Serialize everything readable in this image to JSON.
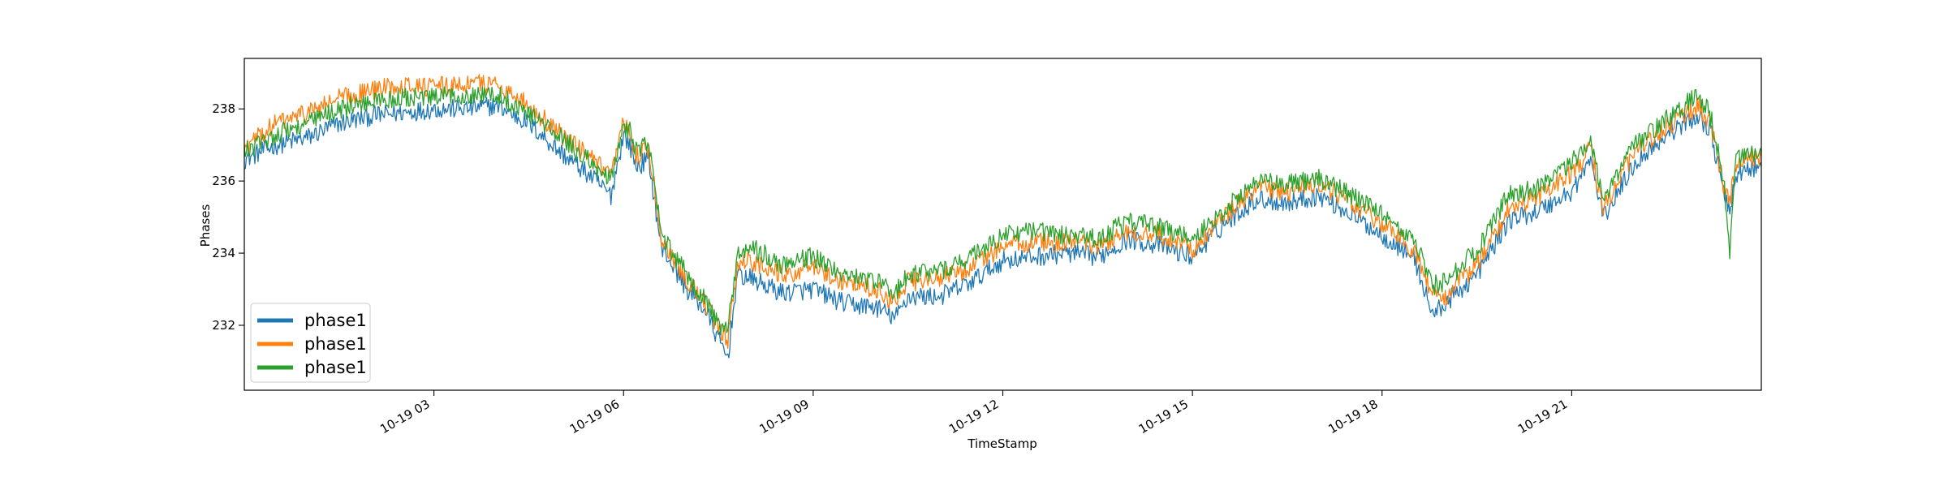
{
  "chart_data": {
    "type": "line",
    "title": "",
    "xlabel": "TimeStamp",
    "ylabel": "Phases",
    "x_range": [
      "10-19 00:00",
      "10-19 24:00"
    ],
    "x_unit": "hours",
    "xlim": [
      0,
      24
    ],
    "ylim": [
      230.2,
      239.4
    ],
    "grid": false,
    "legend_position": "lower-left",
    "x_ticks": [
      {
        "value": 3,
        "label": "10-19 03"
      },
      {
        "value": 6,
        "label": "10-19 06"
      },
      {
        "value": 9,
        "label": "10-19 09"
      },
      {
        "value": 12,
        "label": "10-19 12"
      },
      {
        "value": 15,
        "label": "10-19 15"
      },
      {
        "value": 18,
        "label": "10-19 18"
      },
      {
        "value": 21,
        "label": "10-19 21"
      }
    ],
    "y_ticks": [
      {
        "value": 232,
        "label": "232"
      },
      {
        "value": 234,
        "label": "234"
      },
      {
        "value": 236,
        "label": "236"
      },
      {
        "value": 238,
        "label": "238"
      }
    ],
    "x": [
      0,
      0.5,
      1,
      1.5,
      2,
      2.5,
      3,
      3.5,
      4,
      4.5,
      5,
      5.5,
      5.8,
      6.0,
      6.1,
      6.2,
      6.4,
      6.6,
      6.7,
      7.0,
      7.3,
      7.5,
      7.65,
      7.8,
      8.0,
      8.5,
      9.0,
      9.5,
      10.0,
      10.3,
      10.5,
      11.0,
      11.5,
      12.0,
      12.5,
      13.0,
      13.5,
      14.0,
      14.5,
      15.0,
      15.5,
      16.0,
      16.5,
      17.0,
      17.5,
      18.0,
      18.5,
      18.8,
      19.0,
      19.5,
      20.0,
      20.5,
      21.0,
      21.3,
      21.5,
      22.0,
      22.5,
      23.0,
      23.2,
      23.4,
      23.5,
      23.6,
      24.0
    ],
    "series": [
      {
        "name": "phase1",
        "color": "#1f77b4",
        "values": [
          236.6,
          237.0,
          237.2,
          237.6,
          237.8,
          237.9,
          238.0,
          238.0,
          238.1,
          237.6,
          236.8,
          236.1,
          235.6,
          237.3,
          237.0,
          236.4,
          236.6,
          234.1,
          233.9,
          233.0,
          232.4,
          231.6,
          231.1,
          233.4,
          233.3,
          232.9,
          233.0,
          232.6,
          232.5,
          232.2,
          232.8,
          232.8,
          233.2,
          233.8,
          233.9,
          234.0,
          233.9,
          234.4,
          234.2,
          233.9,
          234.8,
          235.5,
          235.4,
          235.6,
          235.1,
          234.5,
          233.9,
          232.3,
          232.6,
          233.4,
          234.9,
          235.2,
          235.7,
          236.6,
          235.0,
          236.5,
          237.3,
          237.8,
          237.4,
          235.7,
          235.1,
          236.2,
          236.4
        ]
      },
      {
        "name": "phase1",
        "color": "#ff7f0e",
        "values": [
          236.9,
          237.6,
          237.9,
          238.3,
          238.5,
          238.7,
          238.6,
          238.7,
          238.7,
          238.1,
          237.3,
          236.6,
          236.1,
          237.6,
          237.3,
          236.7,
          236.9,
          234.4,
          234.1,
          233.3,
          232.6,
          231.9,
          231.6,
          233.7,
          233.8,
          233.4,
          233.6,
          233.2,
          233.0,
          232.6,
          233.2,
          233.3,
          233.6,
          234.2,
          234.3,
          234.3,
          234.2,
          234.6,
          234.5,
          234.1,
          235.0,
          235.8,
          235.7,
          235.9,
          235.4,
          234.8,
          234.1,
          232.8,
          232.8,
          233.7,
          235.2,
          235.6,
          236.2,
          236.9,
          235.2,
          236.8,
          237.5,
          238.1,
          237.6,
          235.9,
          235.4,
          236.5,
          236.7
        ]
      },
      {
        "name": "phase1",
        "color": "#2ca02c",
        "values": [
          236.8,
          237.3,
          237.6,
          238.0,
          238.2,
          238.3,
          238.3,
          238.4,
          238.4,
          237.9,
          237.2,
          236.5,
          236.0,
          237.5,
          237.4,
          236.9,
          237.0,
          234.5,
          234.2,
          233.4,
          232.7,
          232.0,
          231.9,
          233.9,
          234.2,
          233.7,
          233.9,
          233.4,
          233.2,
          232.9,
          233.4,
          233.5,
          233.9,
          234.5,
          234.6,
          234.5,
          234.4,
          234.9,
          234.7,
          234.4,
          235.2,
          236.0,
          235.9,
          236.1,
          235.6,
          235.1,
          234.4,
          233.1,
          233.2,
          234.1,
          235.6,
          235.8,
          236.5,
          237.2,
          235.5,
          237.0,
          237.7,
          238.4,
          237.8,
          236.1,
          234.0,
          236.6,
          236.8
        ]
      }
    ]
  }
}
